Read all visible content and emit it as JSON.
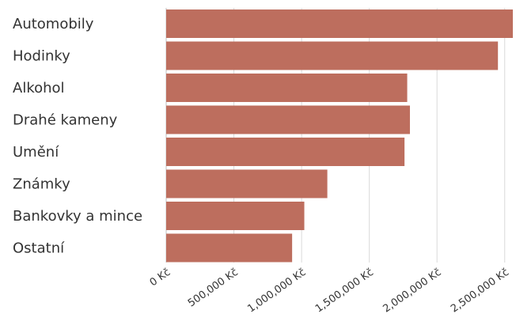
{
  "chart_data": {
    "type": "bar",
    "orientation": "horizontal",
    "categories": [
      "Automobily",
      "Hodinky",
      "Alkohol",
      "Drahé kameny",
      "Umění",
      "Známky",
      "Bankovky a mince",
      "Ostatní"
    ],
    "values": [
      2560000,
      2450000,
      1780000,
      1800000,
      1760000,
      1190000,
      1020000,
      930000
    ],
    "xlim": [
      0,
      2560000
    ],
    "x_ticks": [
      0,
      500000,
      1000000,
      1500000,
      2000000,
      2500000
    ],
    "x_tick_labels": [
      "0 Kč",
      "500,000 Kč",
      "1,000,000 Kč",
      "1,500,000 Kč",
      "2,000,000 Kč",
      "2,500,000 Kč"
    ],
    "grid": true,
    "legend": "none",
    "colors": {
      "bar": "#bd6e5e",
      "grid": "#d9d9d9"
    }
  }
}
